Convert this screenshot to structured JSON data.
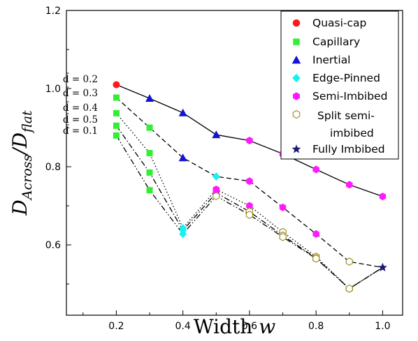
{
  "chart_data": {
    "type": "line",
    "xlabel": {
      "main": "Width ",
      "var": "w"
    },
    "ylabel": {
      "main": "D",
      "sub1": "Across",
      "slash": "/D",
      "sub2": "flat"
    },
    "xlim": [
      0.05,
      1.06
    ],
    "ylim": [
      0.42,
      1.2
    ],
    "xticks": [
      0.2,
      0.4,
      0.6,
      0.8,
      1.0
    ],
    "xtick_labels": [
      "0.2",
      "0.4",
      "0.6",
      "0.8",
      "1.0"
    ],
    "yticks": [
      0.6,
      0.8,
      1.0,
      1.2
    ],
    "ytick_labels": [
      "0.6",
      "0.8",
      "1.0",
      "1.2"
    ],
    "grid": false,
    "legend_position": "top-right",
    "legend": [
      {
        "label": "Quasi-cap",
        "marker": "circle",
        "color": "#ff1a1a"
      },
      {
        "label": "Capillary",
        "marker": "square",
        "color": "#33ee33"
      },
      {
        "label": "Inertial",
        "marker": "triangle",
        "color": "#1414d2"
      },
      {
        "label": "Edge-Pinned",
        "marker": "diamond",
        "color": "#19f0f0"
      },
      {
        "label": "Semi-Imbibed",
        "marker": "hexagon",
        "color": "#ff1aff"
      },
      {
        "label": "Split semi-\nimbibed",
        "marker": "hexagon-open",
        "color": "#9a8a1a"
      },
      {
        "label": "Fully Imbibed",
        "marker": "star",
        "color": "#1a1a70"
      }
    ],
    "series": [
      {
        "d_label": "0.2",
        "line": "solid",
        "points": [
          {
            "x": 0.2,
            "y": 1.01,
            "regime": "Quasi-cap"
          },
          {
            "x": 0.3,
            "y": 0.975,
            "regime": "Inertial"
          },
          {
            "x": 0.4,
            "y": 0.938,
            "regime": "Inertial"
          },
          {
            "x": 0.5,
            "y": 0.882,
            "regime": "Inertial"
          },
          {
            "x": 0.6,
            "y": 0.867,
            "regime": "Semi-Imbibed"
          },
          {
            "x": 0.7,
            "y": 0.833,
            "regime": "Semi-Imbibed"
          },
          {
            "x": 0.8,
            "y": 0.793,
            "regime": "Semi-Imbibed"
          },
          {
            "x": 0.9,
            "y": 0.754,
            "regime": "Semi-Imbibed"
          },
          {
            "x": 1.0,
            "y": 0.724,
            "regime": "Semi-Imbibed"
          }
        ]
      },
      {
        "d_label": "0.3",
        "line": "dashed",
        "points": [
          {
            "x": 0.2,
            "y": 0.977,
            "regime": "Capillary"
          },
          {
            "x": 0.3,
            "y": 0.9,
            "regime": "Capillary"
          },
          {
            "x": 0.4,
            "y": 0.823,
            "regime": "Inertial"
          },
          {
            "x": 0.5,
            "y": 0.775,
            "regime": "Edge-Pinned"
          },
          {
            "x": 0.6,
            "y": 0.763,
            "regime": "Semi-Imbibed"
          },
          {
            "x": 0.7,
            "y": 0.696,
            "regime": "Semi-Imbibed"
          },
          {
            "x": 0.8,
            "y": 0.628,
            "regime": "Semi-Imbibed"
          },
          {
            "x": 0.9,
            "y": 0.557,
            "regime": "Split semi-imbibed"
          },
          {
            "x": 1.0,
            "y": 0.542,
            "regime": "Fully Imbibed"
          }
        ]
      },
      {
        "d_label": "0.4",
        "line": "dotted",
        "points": [
          {
            "x": 0.2,
            "y": 0.937,
            "regime": "Capillary"
          },
          {
            "x": 0.3,
            "y": 0.835,
            "regime": "Capillary"
          },
          {
            "x": 0.4,
            "y": 0.643,
            "regime": "Edge-Pinned"
          },
          {
            "x": 0.5,
            "y": 0.742,
            "regime": "Semi-Imbibed"
          },
          {
            "x": 0.6,
            "y": 0.7,
            "regime": "Semi-Imbibed"
          },
          {
            "x": 0.7,
            "y": 0.633,
            "regime": "Split semi-imbibed"
          },
          {
            "x": 0.8,
            "y": 0.57,
            "regime": "Split semi-imbibed"
          },
          {
            "x": 0.9,
            "y": 0.488,
            "regime": "Split semi-imbibed"
          },
          {
            "x": 1.0,
            "y": 0.542,
            "regime": "Fully Imbibed"
          }
        ]
      },
      {
        "d_label": "0.5",
        "line": "dashdot",
        "points": [
          {
            "x": 0.2,
            "y": 0.905,
            "regime": "Capillary"
          },
          {
            "x": 0.3,
            "y": 0.785,
            "regime": "Capillary"
          },
          {
            "x": 0.4,
            "y": 0.637,
            "regime": "Edge-Pinned"
          },
          {
            "x": 0.5,
            "y": 0.733,
            "regime": "Semi-Imbibed"
          },
          {
            "x": 0.6,
            "y": 0.685,
            "regime": "Split semi-imbibed"
          },
          {
            "x": 0.7,
            "y": 0.624,
            "regime": "Split semi-imbibed"
          },
          {
            "x": 0.8,
            "y": 0.566,
            "regime": "Split semi-imbibed"
          },
          {
            "x": 0.9,
            "y": 0.488,
            "regime": "Split semi-imbibed"
          },
          {
            "x": 1.0,
            "y": 0.542,
            "regime": "Fully Imbibed"
          }
        ]
      },
      {
        "d_label": "0.1",
        "line": "dashdotdot",
        "points": [
          {
            "x": 0.2,
            "y": 0.88,
            "regime": "Capillary"
          },
          {
            "x": 0.3,
            "y": 0.74,
            "regime": "Capillary"
          },
          {
            "x": 0.4,
            "y": 0.628,
            "regime": "Edge-Pinned"
          },
          {
            "x": 0.5,
            "y": 0.725,
            "regime": "Split semi-imbibed"
          },
          {
            "x": 0.6,
            "y": 0.677,
            "regime": "Split semi-imbibed"
          },
          {
            "x": 0.7,
            "y": 0.62,
            "regime": "Split semi-imbibed"
          },
          {
            "x": 0.8,
            "y": 0.565,
            "regime": "Split semi-imbibed"
          },
          {
            "x": 0.9,
            "y": 0.488,
            "regime": "Split semi-imbibed"
          },
          {
            "x": 1.0,
            "y": 0.542,
            "regime": "Fully Imbibed"
          }
        ]
      }
    ],
    "curve_labels": [
      {
        "text": "d̄ = 0.2",
        "value": 1.01
      },
      {
        "text": "d̄ = 0.3",
        "value": 0.977
      },
      {
        "text": "d̄ = 0.4",
        "value": 0.937
      },
      {
        "text": "d̄ = 0.5",
        "value": 0.905
      },
      {
        "text": "d̄ = 0.1",
        "value": 0.88
      }
    ]
  }
}
